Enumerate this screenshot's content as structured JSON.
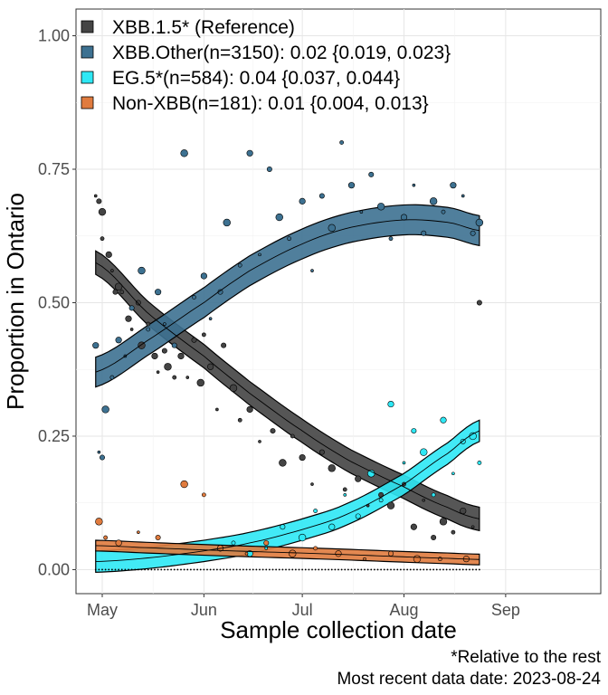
{
  "chart_data": {
    "type": "scatter",
    "xlabel": "Sample collection date",
    "ylabel": "Proportion in Ontario",
    "ylim": [
      -0.045,
      1.05
    ],
    "xlim": [
      "2023-04-23",
      "2023-09-30"
    ],
    "grid": true,
    "legend_position": "top-left",
    "x_ticks": [
      {
        "date": "2023-05-01",
        "label": "May"
      },
      {
        "date": "2023-06-01",
        "label": "Jun"
      },
      {
        "date": "2023-07-01",
        "label": "Jul"
      },
      {
        "date": "2023-08-01",
        "label": "Aug"
      },
      {
        "date": "2023-09-01",
        "label": "Sep"
      }
    ],
    "y_ticks": [
      {
        "value": 0.0,
        "label": "0.00"
      },
      {
        "value": 0.25,
        "label": "0.25"
      },
      {
        "value": 0.5,
        "label": "0.50"
      },
      {
        "value": 0.75,
        "label": "0.75"
      },
      {
        "value": 1.0,
        "label": "1.00"
      }
    ],
    "captions": [
      "*Relative to the rest",
      "Most recent data date: 2023-08-24"
    ],
    "series": [
      {
        "name": "XBB.1.5* (Reference)",
        "color": "#444444",
        "fit": {
          "x": [
            "2023-04-29",
            "2023-05-15",
            "2023-06-01",
            "2023-06-15",
            "2023-07-01",
            "2023-07-15",
            "2023-08-01",
            "2023-08-15",
            "2023-08-24"
          ],
          "y": [
            0.575,
            0.48,
            0.4,
            0.33,
            0.26,
            0.205,
            0.155,
            0.115,
            0.095
          ],
          "band": 0.022
        },
        "points": [
          [
            "2023-04-29",
            0.7
          ],
          [
            "2023-04-30",
            0.69
          ],
          [
            "2023-05-01",
            0.67
          ],
          [
            "2023-05-01",
            0.62
          ],
          [
            "2023-05-03",
            0.59
          ],
          [
            "2023-05-04",
            0.56
          ],
          [
            "2023-05-05",
            0.52
          ],
          [
            "2023-05-06",
            0.53
          ],
          [
            "2023-05-07",
            0.52
          ],
          [
            "2023-05-09",
            0.47
          ],
          [
            "2023-05-10",
            0.45
          ],
          [
            "2023-05-12",
            0.5
          ],
          [
            "2023-05-13",
            0.42
          ],
          [
            "2023-05-15",
            0.46
          ],
          [
            "2023-05-17",
            0.4
          ],
          [
            "2023-05-18",
            0.37
          ],
          [
            "2023-05-20",
            0.41
          ],
          [
            "2023-05-21",
            0.38
          ],
          [
            "2023-05-23",
            0.36
          ],
          [
            "2023-05-25",
            0.4
          ],
          [
            "2023-05-27",
            0.36
          ],
          [
            "2023-05-29",
            0.43
          ],
          [
            "2023-05-31",
            0.35
          ],
          [
            "2023-06-01",
            0.44
          ],
          [
            "2023-06-03",
            0.38
          ],
          [
            "2023-06-05",
            0.3
          ],
          [
            "2023-06-07",
            0.42
          ],
          [
            "2023-06-10",
            0.34
          ],
          [
            "2023-06-12",
            0.28
          ],
          [
            "2023-06-15",
            0.3
          ],
          [
            "2023-06-18",
            0.24
          ],
          [
            "2023-06-22",
            0.26
          ],
          [
            "2023-06-25",
            0.2
          ],
          [
            "2023-06-28",
            0.25
          ],
          [
            "2023-07-01",
            0.21
          ],
          [
            "2023-07-04",
            0.16
          ],
          [
            "2023-07-07",
            0.22
          ],
          [
            "2023-07-10",
            0.19
          ],
          [
            "2023-07-14",
            0.15
          ],
          [
            "2023-07-18",
            0.17
          ],
          [
            "2023-07-21",
            0.12
          ],
          [
            "2023-07-25",
            0.14
          ],
          [
            "2023-07-28",
            0.12
          ],
          [
            "2023-08-01",
            0.16
          ],
          [
            "2023-08-04",
            0.08
          ],
          [
            "2023-08-07",
            0.13
          ],
          [
            "2023-08-10",
            0.06
          ],
          [
            "2023-08-13",
            0.09
          ],
          [
            "2023-08-16",
            0.07
          ],
          [
            "2023-08-19",
            0.11
          ],
          [
            "2023-08-22",
            0.08
          ],
          [
            "2023-08-24",
            0.5
          ]
        ]
      },
      {
        "name": "XBB.Other(n=3150): 0.02 {0.019, 0.023}",
        "color": "#3d7191",
        "fit": {
          "x": [
            "2023-04-29",
            "2023-05-15",
            "2023-06-01",
            "2023-06-15",
            "2023-07-01",
            "2023-07-15",
            "2023-08-01",
            "2023-08-15",
            "2023-08-24"
          ],
          "y": [
            0.37,
            0.43,
            0.5,
            0.56,
            0.61,
            0.64,
            0.655,
            0.65,
            0.635
          ],
          "band": 0.028
        },
        "points": [
          [
            "2023-04-29",
            0.42
          ],
          [
            "2023-04-30",
            0.22
          ],
          [
            "2023-05-01",
            0.21
          ],
          [
            "2023-05-02",
            0.3
          ],
          [
            "2023-05-04",
            0.36
          ],
          [
            "2023-05-06",
            0.43
          ],
          [
            "2023-05-08",
            0.4
          ],
          [
            "2023-05-10",
            0.49
          ],
          [
            "2023-05-13",
            0.56
          ],
          [
            "2023-05-15",
            0.45
          ],
          [
            "2023-05-18",
            0.52
          ],
          [
            "2023-05-20",
            0.46
          ],
          [
            "2023-05-23",
            0.42
          ],
          [
            "2023-05-26",
            0.78
          ],
          [
            "2023-05-29",
            0.51
          ],
          [
            "2023-06-01",
            0.55
          ],
          [
            "2023-06-03",
            0.47
          ],
          [
            "2023-06-06",
            0.52
          ],
          [
            "2023-06-08",
            0.65
          ],
          [
            "2023-06-12",
            0.57
          ],
          [
            "2023-06-15",
            0.78
          ],
          [
            "2023-06-18",
            0.59
          ],
          [
            "2023-06-21",
            0.75
          ],
          [
            "2023-06-24",
            0.66
          ],
          [
            "2023-06-27",
            0.62
          ],
          [
            "2023-07-01",
            0.69
          ],
          [
            "2023-07-04",
            0.56
          ],
          [
            "2023-07-07",
            0.7
          ],
          [
            "2023-07-10",
            0.64
          ],
          [
            "2023-07-13",
            0.8
          ],
          [
            "2023-07-16",
            0.72
          ],
          [
            "2023-07-19",
            0.67
          ],
          [
            "2023-07-22",
            0.74
          ],
          [
            "2023-07-25",
            0.68
          ],
          [
            "2023-07-28",
            0.62
          ],
          [
            "2023-08-01",
            0.66
          ],
          [
            "2023-08-04",
            0.72
          ],
          [
            "2023-08-07",
            0.63
          ],
          [
            "2023-08-10",
            0.69
          ],
          [
            "2023-08-13",
            0.67
          ],
          [
            "2023-08-16",
            0.72
          ],
          [
            "2023-08-19",
            0.7
          ],
          [
            "2023-08-22",
            0.63
          ],
          [
            "2023-08-24",
            0.65
          ]
        ]
      },
      {
        "name": "EG.5*(n=584): 0.04 {0.037, 0.044}",
        "color": "#2ee8f5",
        "fit": {
          "x": [
            "2023-04-29",
            "2023-05-15",
            "2023-06-01",
            "2023-06-15",
            "2023-07-01",
            "2023-07-15",
            "2023-08-01",
            "2023-08-15",
            "2023-08-24"
          ],
          "y": [
            0.015,
            0.022,
            0.035,
            0.05,
            0.075,
            0.105,
            0.16,
            0.22,
            0.26
          ],
          "band": 0.02
        },
        "points": [
          [
            "2023-06-10",
            0.05
          ],
          [
            "2023-06-15",
            0.03
          ],
          [
            "2023-06-20",
            0.04
          ],
          [
            "2023-06-25",
            0.08
          ],
          [
            "2023-07-01",
            0.06
          ],
          [
            "2023-07-05",
            0.11
          ],
          [
            "2023-07-10",
            0.08
          ],
          [
            "2023-07-14",
            0.14
          ],
          [
            "2023-07-18",
            0.1
          ],
          [
            "2023-07-22",
            0.18
          ],
          [
            "2023-07-25",
            0.13
          ],
          [
            "2023-07-28",
            0.31
          ],
          [
            "2023-08-01",
            0.2
          ],
          [
            "2023-08-04",
            0.26
          ],
          [
            "2023-08-07",
            0.22
          ],
          [
            "2023-08-10",
            0.14
          ],
          [
            "2023-08-13",
            0.28
          ],
          [
            "2023-08-16",
            0.18
          ],
          [
            "2023-08-19",
            0.24
          ],
          [
            "2023-08-22",
            0.25
          ],
          [
            "2023-08-24",
            0.2
          ]
        ]
      },
      {
        "name": "Non-XBB(n=181): 0.01 {0.004, 0.013}",
        "color": "#e07b3e",
        "fit": {
          "x": [
            "2023-04-29",
            "2023-05-15",
            "2023-06-01",
            "2023-06-15",
            "2023-07-01",
            "2023-07-15",
            "2023-08-01",
            "2023-08-15",
            "2023-08-24"
          ],
          "y": [
            0.045,
            0.041,
            0.037,
            0.034,
            0.031,
            0.028,
            0.024,
            0.021,
            0.019
          ],
          "band": 0.01
        },
        "points": [
          [
            "2023-04-30",
            0.09
          ],
          [
            "2023-05-02",
            0.06
          ],
          [
            "2023-05-06",
            0.05
          ],
          [
            "2023-05-12",
            0.07
          ],
          [
            "2023-05-18",
            0.06
          ],
          [
            "2023-05-26",
            0.16
          ],
          [
            "2023-06-01",
            0.14
          ],
          [
            "2023-06-06",
            0.04
          ],
          [
            "2023-06-14",
            0.03
          ],
          [
            "2023-06-20",
            0.05
          ],
          [
            "2023-06-28",
            0.03
          ],
          [
            "2023-07-05",
            0.04
          ],
          [
            "2023-07-12",
            0.03
          ],
          [
            "2023-07-20",
            0.02
          ],
          [
            "2023-07-28",
            0.03
          ],
          [
            "2023-08-05",
            0.02
          ],
          [
            "2023-08-12",
            0.02
          ],
          [
            "2023-08-20",
            0.02
          ]
        ]
      }
    ]
  }
}
